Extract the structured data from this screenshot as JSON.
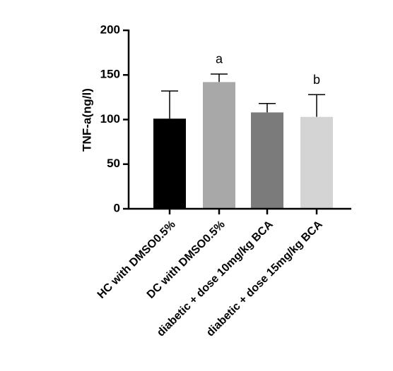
{
  "chart_data": {
    "type": "bar",
    "ylabel": "TNF-a(ng/l)",
    "categories": [
      "HC with DMSO0.5%",
      "DC with DMSO0.5%",
      "diabetic + dose 10mg/kg BCA",
      "diabetic + dose 15mg/kg BCA"
    ],
    "values": [
      101,
      142,
      108,
      103
    ],
    "errors": [
      31,
      9,
      10,
      25
    ],
    "colors": [
      "#000000",
      "#a8a8a8",
      "#7b7b7b",
      "#d4d4d4"
    ],
    "annotations": [
      null,
      "a",
      null,
      "b"
    ],
    "ylim": [
      0,
      200
    ],
    "yticks": [
      0,
      50,
      100,
      150,
      200
    ],
    "grid": false
  }
}
